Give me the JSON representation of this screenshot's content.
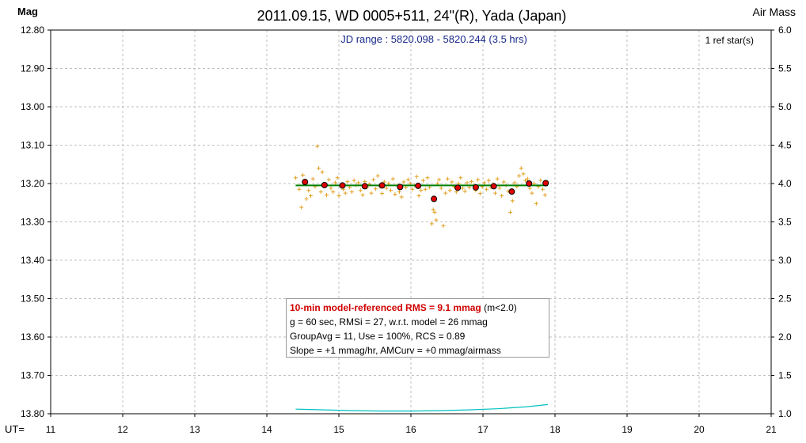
{
  "chart_data": {
    "type": "scatter",
    "title": "2011.09.15, WD 0005+511, 24\"(R), Yada (Japan)",
    "subtitle": "JD range : 5820.098 - 5820.244 (3.5 hrs)",
    "ref_stars": "1 ref star(s)",
    "ylabel": "Mag",
    "y2label": "Air Mass",
    "xlabel": "UT=",
    "ylim": [
      12.8,
      13.8
    ],
    "y_inverted": true,
    "y2lim": [
      1.0,
      6.0
    ],
    "xlim": [
      11,
      21
    ],
    "grid": true,
    "y_ticks": [
      "12.80",
      "12.90",
      "13.00",
      "13.10",
      "13.20",
      "13.30",
      "13.40",
      "13.50",
      "13.60",
      "13.70",
      "13.80"
    ],
    "y2_ticks": [
      "6.0",
      "5.5",
      "5.0",
      "4.5",
      "4.0",
      "3.5",
      "3.0",
      "2.5",
      "2.0",
      "1.5",
      "1.0"
    ],
    "x_ticks": [
      "11",
      "12",
      "13",
      "14",
      "15",
      "16",
      "17",
      "18",
      "19",
      "20",
      "21"
    ],
    "series": [
      {
        "kind": "individual",
        "color": "#e0a020",
        "points": [
          [
            14.4,
            13.185
          ],
          [
            14.45,
            13.215
          ],
          [
            14.48,
            13.262
          ],
          [
            14.5,
            13.178
          ],
          [
            14.53,
            13.2
          ],
          [
            14.55,
            13.24
          ],
          [
            14.58,
            13.218
          ],
          [
            14.61,
            13.232
          ],
          [
            14.64,
            13.188
          ],
          [
            14.67,
            13.208
          ],
          [
            14.7,
            13.103
          ],
          [
            14.72,
            13.16
          ],
          [
            14.75,
            13.222
          ],
          [
            14.77,
            13.17
          ],
          [
            14.8,
            13.205
          ],
          [
            14.83,
            13.23
          ],
          [
            14.86,
            13.19
          ],
          [
            14.89,
            13.212
          ],
          [
            14.92,
            13.222
          ],
          [
            14.95,
            13.198
          ],
          [
            14.98,
            13.185
          ],
          [
            15.0,
            13.232
          ],
          [
            15.03,
            13.208
          ],
          [
            15.06,
            13.215
          ],
          [
            15.09,
            13.225
          ],
          [
            15.12,
            13.195
          ],
          [
            15.15,
            13.21
          ],
          [
            15.18,
            13.222
          ],
          [
            15.21,
            13.192
          ],
          [
            15.24,
            13.205
          ],
          [
            15.27,
            13.198
          ],
          [
            15.3,
            13.218
          ],
          [
            15.33,
            13.23
          ],
          [
            15.36,
            13.195
          ],
          [
            15.39,
            13.21
          ],
          [
            15.42,
            13.202
          ],
          [
            15.45,
            13.225
          ],
          [
            15.48,
            13.19
          ],
          [
            15.51,
            13.214
          ],
          [
            15.54,
            13.18
          ],
          [
            15.57,
            13.208
          ],
          [
            15.6,
            13.226
          ],
          [
            15.63,
            13.196
          ],
          [
            15.66,
            13.212
          ],
          [
            15.69,
            13.2
          ],
          [
            15.72,
            13.218
          ],
          [
            15.75,
            13.188
          ],
          [
            15.78,
            13.228
          ],
          [
            15.81,
            13.205
          ],
          [
            15.84,
            13.222
          ],
          [
            15.87,
            13.235
          ],
          [
            15.9,
            13.196
          ],
          [
            15.93,
            13.21
          ],
          [
            15.96,
            13.19
          ],
          [
            15.99,
            13.2
          ],
          [
            16.02,
            13.215
          ],
          [
            16.05,
            13.205
          ],
          [
            16.08,
            13.182
          ],
          [
            16.11,
            13.232
          ],
          [
            16.14,
            13.218
          ],
          [
            16.17,
            13.192
          ],
          [
            16.2,
            13.215
          ],
          [
            16.23,
            13.185
          ],
          [
            16.26,
            13.21
          ],
          [
            16.29,
            13.305
          ],
          [
            16.31,
            13.268
          ],
          [
            16.33,
            13.275
          ],
          [
            16.35,
            13.295
          ],
          [
            16.37,
            13.2
          ],
          [
            16.39,
            13.19
          ],
          [
            16.42,
            13.212
          ],
          [
            16.45,
            13.31
          ],
          [
            16.48,
            13.225
          ],
          [
            16.51,
            13.188
          ],
          [
            16.54,
            13.218
          ],
          [
            16.57,
            13.196
          ],
          [
            16.6,
            13.208
          ],
          [
            16.63,
            13.222
          ],
          [
            16.66,
            13.2
          ],
          [
            16.69,
            13.185
          ],
          [
            16.72,
            13.212
          ],
          [
            16.75,
            13.22
          ],
          [
            16.78,
            13.198
          ],
          [
            16.81,
            13.21
          ],
          [
            16.84,
            13.195
          ],
          [
            16.87,
            13.205
          ],
          [
            16.9,
            13.218
          ],
          [
            16.93,
            13.19
          ],
          [
            16.96,
            13.226
          ],
          [
            16.99,
            13.208
          ],
          [
            17.02,
            13.198
          ],
          [
            17.05,
            13.215
          ],
          [
            17.08,
            13.192
          ],
          [
            17.11,
            13.21
          ],
          [
            17.14,
            13.202
          ],
          [
            17.17,
            13.225
          ],
          [
            17.2,
            13.188
          ],
          [
            17.23,
            13.212
          ],
          [
            17.26,
            13.232
          ],
          [
            17.29,
            13.196
          ],
          [
            17.32,
            13.205
          ],
          [
            17.35,
            13.22
          ],
          [
            17.38,
            13.275
          ],
          [
            17.41,
            13.245
          ],
          [
            17.44,
            13.198
          ],
          [
            17.47,
            13.208
          ],
          [
            17.5,
            13.18
          ],
          [
            17.53,
            13.16
          ],
          [
            17.56,
            13.175
          ],
          [
            17.59,
            13.192
          ],
          [
            17.62,
            13.188
          ],
          [
            17.65,
            13.212
          ],
          [
            17.68,
            13.225
          ],
          [
            17.71,
            13.2
          ],
          [
            17.74,
            13.252
          ],
          [
            17.77,
            13.208
          ],
          [
            17.8,
            13.192
          ],
          [
            17.83,
            13.215
          ],
          [
            17.86,
            13.23
          ],
          [
            17.89,
            13.195
          ]
        ]
      },
      {
        "kind": "group_average",
        "color": "#e00000",
        "points": [
          [
            14.53,
            13.196
          ],
          [
            14.8,
            13.204
          ],
          [
            15.05,
            13.205
          ],
          [
            15.36,
            13.207
          ],
          [
            15.6,
            13.205
          ],
          [
            15.85,
            13.209
          ],
          [
            16.1,
            13.206
          ],
          [
            16.32,
            13.24
          ],
          [
            16.65,
            13.211
          ],
          [
            16.9,
            13.21
          ],
          [
            17.15,
            13.207
          ],
          [
            17.4,
            13.221
          ],
          [
            17.64,
            13.2
          ],
          [
            17.87,
            13.199
          ]
        ]
      },
      {
        "kind": "model",
        "color": "#008000",
        "points": [
          [
            14.4,
            13.205
          ],
          [
            17.9,
            13.205
          ]
        ]
      },
      {
        "kind": "air_mass",
        "axis": "right",
        "color": "#00c0c0",
        "points": [
          [
            14.4,
            1.06
          ],
          [
            14.8,
            1.05
          ],
          [
            15.2,
            1.04
          ],
          [
            15.6,
            1.035
          ],
          [
            16.0,
            1.035
          ],
          [
            16.4,
            1.04
          ],
          [
            16.8,
            1.05
          ],
          [
            17.2,
            1.065
          ],
          [
            17.6,
            1.09
          ],
          [
            17.9,
            1.12
          ]
        ]
      }
    ]
  },
  "stats": {
    "line1_highlight": "10-min model-referenced RMS = 9.1 mmag",
    "line1_suffix": " (m<2.0)",
    "line2": "g = 60 sec, RMSi = 27, w.r.t. model = 26 mmag",
    "line3": "GroupAvg = 11, Use = 100%, RCS = 0.89",
    "line4": "Slope = +1 mmag/hr, AMCurv = +0 mmag/airmass"
  }
}
